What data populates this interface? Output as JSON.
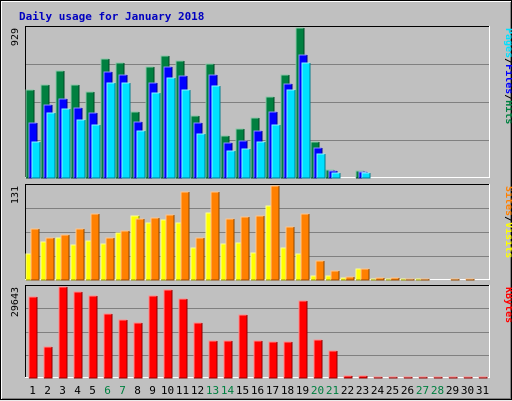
{
  "chart_data": [
    {
      "type": "bar",
      "title": "Daily usage for January 2018",
      "categories": [
        "1",
        "2",
        "3",
        "4",
        "5",
        "6",
        "7",
        "8",
        "9",
        "10",
        "11",
        "12",
        "13",
        "14",
        "15",
        "16",
        "17",
        "18",
        "19",
        "20",
        "21",
        "22",
        "23",
        "24",
        "25",
        "26",
        "27",
        "28",
        "29",
        "30",
        "31"
      ],
      "weekend_days": [
        "6",
        "7",
        "13",
        "14",
        "20",
        "21",
        "27",
        "28"
      ],
      "ylim": [
        0,
        929
      ],
      "ytick_label": "929",
      "series": [
        {
          "name": "Hits",
          "color": "#008040",
          "values": [
            548,
            578,
            660,
            578,
            531,
            738,
            715,
            411,
            688,
            758,
            725,
            382,
            707,
            260,
            305,
            373,
            501,
            640,
            929,
            221,
            52,
            0,
            42,
            0,
            0,
            0,
            0,
            0,
            0,
            0,
            0
          ]
        },
        {
          "name": "Files",
          "color": "#0000ff",
          "values": [
            340,
            450,
            490,
            435,
            405,
            658,
            640,
            345,
            588,
            690,
            632,
            340,
            635,
            214,
            230,
            290,
            410,
            585,
            760,
            185,
            43,
            0,
            38,
            0,
            0,
            0,
            0,
            0,
            0,
            0,
            0
          ]
        },
        {
          "name": "Pages",
          "color": "#00e0ff",
          "values": [
            220,
            400,
            430,
            360,
            330,
            590,
            590,
            290,
            525,
            620,
            545,
            270,
            570,
            165,
            180,
            225,
            330,
            545,
            715,
            150,
            30,
            0,
            30,
            0,
            0,
            0,
            0,
            0,
            0,
            0,
            0
          ]
        }
      ],
      "legend_separator": "/"
    },
    {
      "type": "bar",
      "categories": [
        "1",
        "2",
        "3",
        "4",
        "5",
        "6",
        "7",
        "8",
        "9",
        "10",
        "11",
        "12",
        "13",
        "14",
        "15",
        "16",
        "17",
        "18",
        "19",
        "20",
        "21",
        "22",
        "23",
        "24",
        "25",
        "26",
        "27",
        "28",
        "29",
        "30",
        "31"
      ],
      "ylim": [
        0,
        131
      ],
      "ytick_label": "131",
      "series": [
        {
          "name": "Visits",
          "color": "#ffff00",
          "values": [
            36,
            53,
            58,
            49,
            55,
            50,
            65,
            89,
            79,
            83,
            79,
            44,
            94,
            50,
            51,
            37,
            103,
            45,
            36,
            6,
            6,
            3,
            16,
            2,
            1,
            1,
            1,
            0,
            0,
            0,
            0
          ]
        },
        {
          "name": "Sites",
          "color": "#ff8000",
          "values": [
            71,
            58,
            63,
            71,
            92,
            58,
            68,
            85,
            86,
            91,
            123,
            59,
            123,
            85,
            88,
            89,
            131,
            74,
            92,
            26,
            13,
            4,
            16,
            3,
            3,
            1,
            1,
            0,
            1,
            1,
            0
          ]
        }
      ],
      "legend_separator": "/"
    },
    {
      "type": "bar",
      "categories": [
        "1",
        "2",
        "3",
        "4",
        "5",
        "6",
        "7",
        "8",
        "9",
        "10",
        "11",
        "12",
        "13",
        "14",
        "15",
        "16",
        "17",
        "18",
        "19",
        "20",
        "21",
        "22",
        "23",
        "24",
        "25",
        "26",
        "27",
        "28",
        "29",
        "30",
        "31"
      ],
      "ylim": [
        0,
        29643
      ],
      "ytick_label": "29643",
      "series": [
        {
          "name": "KBytes",
          "color": "#ff0000",
          "values": [
            26350,
            10250,
            29643,
            28000,
            26560,
            20770,
            18960,
            18040,
            26720,
            28650,
            25800,
            17930,
            11930,
            12090,
            20490,
            11910,
            11850,
            11850,
            25120,
            12240,
            8640,
            595,
            595,
            300,
            250,
            235,
            245,
            240,
            210,
            210,
            190
          ]
        }
      ]
    }
  ]
}
